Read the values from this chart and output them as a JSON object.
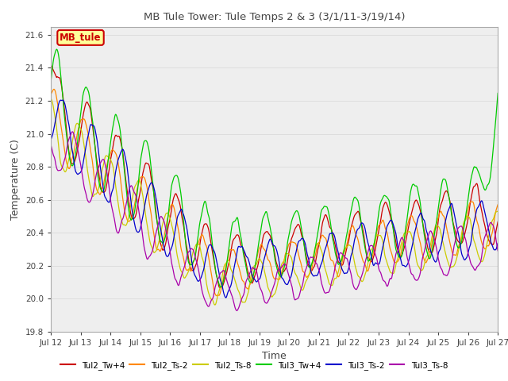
{
  "title": "MB Tule Tower: Tule Temps 2 & 3 (3/1/11-3/19/14)",
  "xlabel": "Time",
  "ylabel": "Temperature (C)",
  "ylim": [
    19.8,
    21.65
  ],
  "yticks": [
    19.8,
    20.0,
    20.2,
    20.4,
    20.6,
    20.8,
    21.0,
    21.2,
    21.4,
    21.6
  ],
  "xlim_start": 0,
  "xlim_end": 15,
  "xtick_labels": [
    "Jul 12",
    "Jul 13",
    "Jul 14",
    "Jul 15",
    "Jul 16",
    "Jul 17",
    "Jul 18",
    "Jul 19",
    "Jul 20",
    "Jul 21",
    "Jul 22",
    "Jul 23",
    "Jul 24",
    "Jul 25",
    "Jul 26",
    "Jul 27"
  ],
  "series_labels": [
    "Tul2_Tw+4",
    "Tul2_Ts-2",
    "Tul2_Ts-8",
    "Tul3_Tw+4",
    "Tul3_Ts-2",
    "Tul3_Ts-8"
  ],
  "series_colors": [
    "#cc0000",
    "#ff8800",
    "#cccc00",
    "#00cc00",
    "#0000cc",
    "#aa00aa"
  ],
  "legend_label": "MB_tule",
  "background_color": "#ffffff",
  "grid_color": "#dddddd",
  "legend_box_color": "#ffff99",
  "legend_box_edge": "#cc0000",
  "figsize": [
    6.4,
    4.8
  ],
  "dpi": 100
}
